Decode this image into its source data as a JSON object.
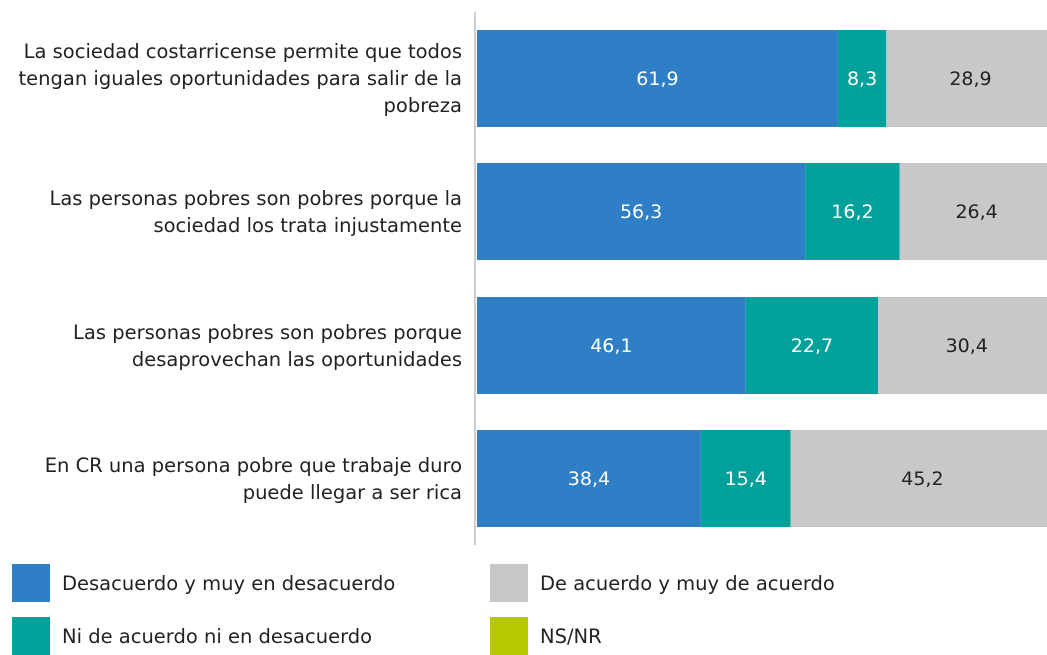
{
  "chart_data": {
    "type": "stacked-barh",
    "categories": [
      "La sociedad costarricense permite que todos tengan iguales oportunidades para salir de la pobreza",
      "Las personas pobres son pobres porque la sociedad los trata injustamente",
      "Las personas pobres son pobres porque desaprovechan las oportunidades",
      "En CR una persona pobre que trabaje duro puede llegar a ser rica"
    ],
    "series": [
      {
        "name": "Desacuerdo y muy en desacuerdo",
        "color": "#2e7fc5",
        "label_color": "#ffffff",
        "values": [
          61.9,
          56.3,
          46.1,
          38.4
        ],
        "value_labels": [
          "61,9",
          "56,3",
          "46,1",
          "38,4"
        ]
      },
      {
        "name": "Ni de acuerdo ni en desacuerdo",
        "color": "#00a19b",
        "label_color": "#ffffff",
        "values": [
          8.3,
          16.2,
          22.7,
          15.4
        ],
        "value_labels": [
          "8,3",
          "16,2",
          "22,7",
          "15,4"
        ]
      },
      {
        "name": "De acuerdo y muy de acuerdo",
        "color": "#c8c8c8",
        "label_color": "#222222",
        "values": [
          28.9,
          26.4,
          30.4,
          45.2
        ],
        "value_labels": [
          "28,9",
          "26,4",
          "30,4",
          "45,2"
        ]
      },
      {
        "name": "NS/NR",
        "color": "#b7c800",
        "values": [
          0.9,
          1.1,
          0.8,
          1.0
        ]
      }
    ],
    "xlim": [
      0,
      100
    ]
  }
}
